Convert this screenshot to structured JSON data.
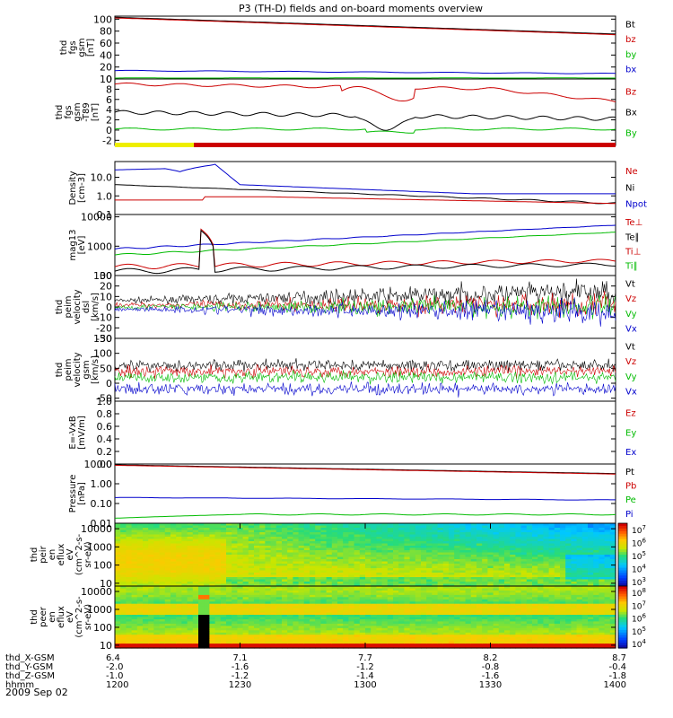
{
  "title": "P3 (TH-D) fields and on-board moments overview",
  "date_label": "2009 Sep 02",
  "ephemeris": [
    {
      "name": "thd_X-GSM",
      "values": [
        "6.4",
        "7.1",
        "7.7",
        "8.2",
        "8.7"
      ]
    },
    {
      "name": "thd_Y-GSM",
      "values": [
        "-2.0",
        "-1.6",
        "-1.2",
        "-0.8",
        "-0.4"
      ]
    },
    {
      "name": "thd_Z-GSM",
      "values": [
        "-1.0",
        "-1.2",
        "-1.4",
        "-1.6",
        "-1.8"
      ]
    },
    {
      "name": "hhmm",
      "values": [
        "1200",
        "1230",
        "1300",
        "1330",
        "1400"
      ]
    }
  ],
  "chart_data": [
    {
      "type": "line",
      "ylabel": [
        "thd",
        "fgs",
        "gsm",
        "[nT]"
      ],
      "yticks": [
        "0",
        "20",
        "40",
        "60",
        "80",
        "100"
      ],
      "ylim": [
        0,
        105
      ],
      "series": [
        {
          "name": "Bt",
          "color": "#000000"
        },
        {
          "name": "bz",
          "color": "#cc0000"
        },
        {
          "name": "by",
          "color": "#00bb00"
        },
        {
          "name": "bx",
          "color": "#0000cc"
        }
      ]
    },
    {
      "type": "line",
      "ylabel": [
        "thd",
        "fgs",
        "gsm",
        "-T89",
        "[nT]"
      ],
      "yticks": [
        "-2",
        "0",
        "2",
        "4",
        "6",
        "8",
        "10"
      ],
      "ylim": [
        -3,
        10
      ],
      "series": [
        {
          "name": "Bz",
          "color": "#cc0000"
        },
        {
          "name": "Bx",
          "color": "#000000"
        },
        {
          "name": "By",
          "color": "#00bb00"
        }
      ]
    },
    {
      "type": "line",
      "ylabel": [
        "Density",
        "[cm-3]"
      ],
      "yticks": [
        "0.1",
        "1.0",
        "10.0"
      ],
      "ylim": [
        0.1,
        70
      ],
      "log": true,
      "series": [
        {
          "name": "Ne",
          "color": "#cc0000"
        },
        {
          "name": "Ni",
          "color": "#000000"
        },
        {
          "name": "Npot",
          "color": "#0000cc"
        }
      ]
    },
    {
      "type": "line",
      "ylabel": [
        "mag13",
        "[eV]"
      ],
      "yticks": [
        "100",
        "1000",
        "10000"
      ],
      "ylim": [
        100,
        12000
      ],
      "log": true,
      "series": [
        {
          "name": "Te⊥",
          "color": "#cc0000"
        },
        {
          "name": "Te∥",
          "color": "#000000"
        },
        {
          "name": "Ti⊥",
          "color": "#cc0000"
        },
        {
          "name": "Ti∥",
          "color": "#00bb00"
        }
      ]
    },
    {
      "type": "line",
      "ylabel": [
        "thd",
        "peim",
        "velocity",
        "dsl",
        "[km/s]"
      ],
      "yticks": [
        "-30",
        "-20",
        "-10",
        "0",
        "10",
        "20",
        "30"
      ],
      "ylim": [
        -30,
        30
      ],
      "series": [
        {
          "name": "Vt",
          "color": "#000000"
        },
        {
          "name": "Vz",
          "color": "#cc0000"
        },
        {
          "name": "Vy",
          "color": "#00bb00"
        },
        {
          "name": "Vx",
          "color": "#0000cc"
        }
      ]
    },
    {
      "type": "line",
      "ylabel": [
        "thd",
        "peim",
        "velocity",
        "gsm",
        "[km/s]"
      ],
      "yticks": [
        "-50",
        "0",
        "50",
        "100",
        "150"
      ],
      "ylim": [
        -60,
        150
      ],
      "series": [
        {
          "name": "Vt",
          "color": "#000000"
        },
        {
          "name": "Vz",
          "color": "#cc0000"
        },
        {
          "name": "Vy",
          "color": "#00bb00"
        },
        {
          "name": "Vx",
          "color": "#0000cc"
        }
      ]
    },
    {
      "type": "line",
      "ylabel": [
        "E=-VxB",
        "[mV/m]"
      ],
      "yticks": [
        "0.0",
        "0.2",
        "0.4",
        "0.6",
        "0.8",
        "1.0"
      ],
      "ylim": [
        0,
        1
      ],
      "series": [
        {
          "name": "Ez",
          "color": "#cc0000"
        },
        {
          "name": "Ey",
          "color": "#00bb00"
        },
        {
          "name": "Ex",
          "color": "#0000cc"
        }
      ]
    },
    {
      "type": "line",
      "ylabel": [
        "Pressure",
        "[nPa]"
      ],
      "yticks": [
        "0.01",
        "0.10",
        "1.00",
        "10.00"
      ],
      "ylim": [
        0.01,
        10
      ],
      "log": true,
      "series": [
        {
          "name": "Pt",
          "color": "#000000"
        },
        {
          "name": "Pb",
          "color": "#cc0000"
        },
        {
          "name": "Pe",
          "color": "#00bb00"
        },
        {
          "name": "Pi",
          "color": "#0000cc"
        }
      ]
    },
    {
      "type": "heatmap",
      "ylabel": [
        "thd",
        "peir",
        "en",
        "eflux",
        "eV",
        "(cm^2-s-",
        "sr-eV)"
      ],
      "yticks": [
        "10",
        "100",
        "1000",
        "10000"
      ],
      "ylim": [
        7,
        20000
      ],
      "log": true,
      "colorbar_ticks": [
        "10^7",
        "10^6",
        "10^5",
        "10^4",
        "10^3"
      ]
    },
    {
      "type": "heatmap",
      "ylabel": [
        "thd",
        "peer",
        "en",
        "eflux",
        "eV",
        "(cm^2-s-",
        "sr-eV)"
      ],
      "yticks": [
        "10",
        "100",
        "1000",
        "10000"
      ],
      "ylim": [
        7,
        20000
      ],
      "log": true,
      "colorbar_ticks": [
        "10^8",
        "10^7",
        "10^6",
        "10^5",
        "10^4"
      ]
    }
  ],
  "colors": {
    "red": "#cc0000",
    "green": "#00bb00",
    "blue": "#0000cc",
    "black": "#000000",
    "yellow": "#eeee00"
  }
}
